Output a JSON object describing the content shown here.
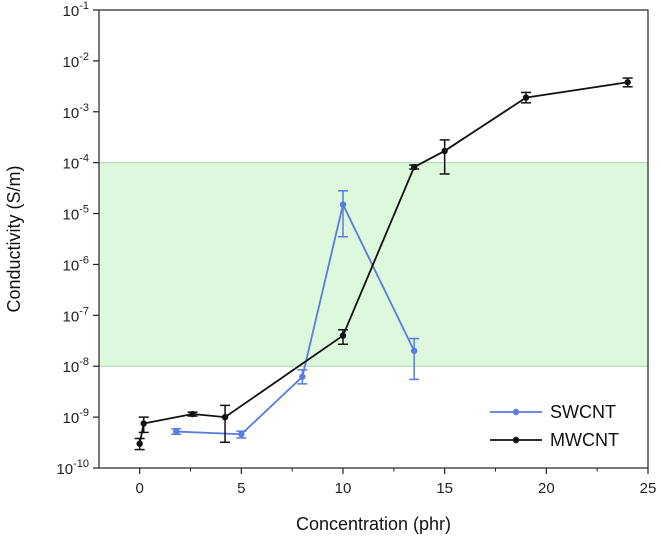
{
  "chart_data": {
    "type": "line",
    "xlabel": "Concentration (phr)",
    "ylabel": "Conductivity (S/m)",
    "x_range": [
      -2,
      25
    ],
    "y_range_log10": [
      -10,
      -1
    ],
    "y_scale": "log",
    "x_ticks": [
      "0",
      "5",
      "10",
      "15",
      "20",
      "25"
    ],
    "y_ticks": [
      {
        "base": "10",
        "exp": "-10"
      },
      {
        "base": "10",
        "exp": "-9"
      },
      {
        "base": "10",
        "exp": "-8"
      },
      {
        "base": "10",
        "exp": "-7"
      },
      {
        "base": "10",
        "exp": "-6"
      },
      {
        "base": "10",
        "exp": "-5"
      },
      {
        "base": "10",
        "exp": "-4"
      },
      {
        "base": "10",
        "exp": "-3"
      },
      {
        "base": "10",
        "exp": "-2"
      },
      {
        "base": "10",
        "exp": "-1"
      }
    ],
    "highlight_band": {
      "y_from": 1e-08,
      "y_to": 0.0001,
      "color": "#ddf8dd",
      "edge_color": "#a8d8a8"
    },
    "legend_position": "bottom-right",
    "grid": false,
    "series": [
      {
        "name": "SWCNT",
        "color": "#5b7be0",
        "points": [
          {
            "x": 1.8,
            "y": 5.2e-10,
            "err_low": 4.6e-10,
            "err_high": 5.9e-10
          },
          {
            "x": 5.0,
            "y": 4.6e-10,
            "err_low": 3.9e-10,
            "err_high": 5.3e-10
          },
          {
            "x": 8.0,
            "y": 6.2e-09,
            "err_low": 4.5e-09,
            "err_high": 8.5e-09
          },
          {
            "x": 10.0,
            "y": 1.5e-05,
            "err_low": 3.5e-06,
            "err_high": 2.8e-05
          },
          {
            "x": 13.5,
            "y": 2e-08,
            "err_low": 5.5e-09,
            "err_high": 3.5e-08
          }
        ]
      },
      {
        "name": "MWCNT",
        "color": "#111111",
        "points": [
          {
            "x": 0.0,
            "y": 3e-10,
            "err_low": 2.3e-10,
            "err_high": 3.8e-10
          },
          {
            "x": 0.2,
            "y": 7.5e-10,
            "err_low": 5e-10,
            "err_high": 1e-09
          },
          {
            "x": 2.6,
            "y": 1.15e-09,
            "err_low": 1.05e-09,
            "err_high": 1.25e-09
          },
          {
            "x": 4.2,
            "y": 1e-09,
            "err_low": 3.2e-10,
            "err_high": 1.7e-09
          },
          {
            "x": 10.0,
            "y": 4e-08,
            "err_low": 2.7e-08,
            "err_high": 5.2e-08
          },
          {
            "x": 13.5,
            "y": 8.2e-05,
            "err_low": 7.5e-05,
            "err_high": 9e-05
          },
          {
            "x": 15.0,
            "y": 0.00017,
            "err_low": 6e-05,
            "err_high": 0.00028
          },
          {
            "x": 19.0,
            "y": 0.0019,
            "err_low": 0.0015,
            "err_high": 0.0024
          },
          {
            "x": 24.0,
            "y": 0.0038,
            "err_low": 0.0031,
            "err_high": 0.0046
          }
        ]
      }
    ]
  }
}
